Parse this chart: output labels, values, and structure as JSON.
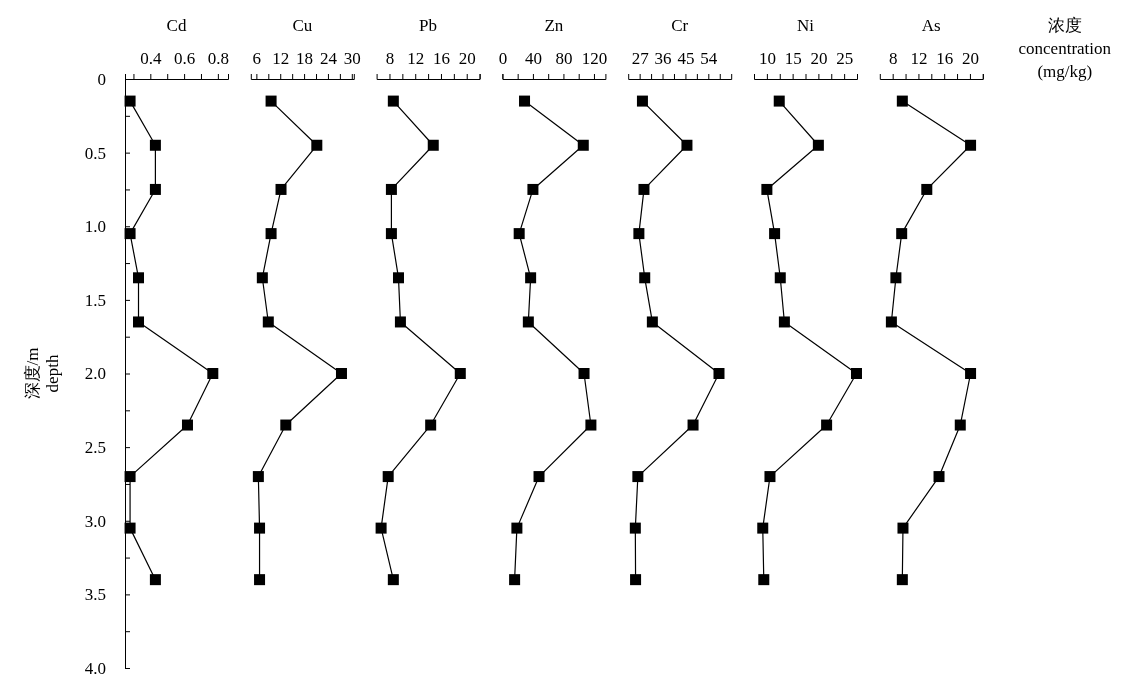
{
  "chart_data": [
    {
      "type": "line",
      "title": "Cd",
      "ylabel": "深度/m\ndepth",
      "color": "#000000",
      "marker": "square",
      "x": [
        0.28,
        0.43,
        0.43,
        0.28,
        0.33,
        0.33,
        0.77,
        0.62,
        0.28,
        0.28,
        0.43
      ],
      "values": [
        0.15,
        0.45,
        0.75,
        1.05,
        1.35,
        1.65,
        2.0,
        2.35,
        2.7,
        3.05,
        3.4
      ],
      "xlim": [
        0.25,
        0.86
      ],
      "xticks": [
        {
          "value": 0.3,
          "label": null
        },
        0.4,
        {
          "value": 0.5,
          "label": null
        },
        0.6,
        {
          "value": 0.7,
          "label": null
        },
        0.8
      ],
      "ylim": [
        4,
        0
      ],
      "yticks": [
        0,
        {
          "value": 0.25,
          "label": null
        },
        0.5,
        {
          "value": 0.75,
          "label": null
        },
        {
          "value": 1,
          "label": "1.0"
        },
        {
          "value": 1.25,
          "label": null
        },
        1.5,
        {
          "value": 1.75,
          "label": null
        },
        {
          "value": 2,
          "label": "2.0"
        },
        {
          "value": 2.25,
          "label": null
        },
        2.5,
        {
          "value": 2.75,
          "label": null
        },
        {
          "value": 3,
          "label": "3.0"
        },
        {
          "value": 3.25,
          "label": null
        },
        3.5,
        {
          "value": 3.75,
          "label": null
        },
        {
          "value": 4,
          "label": "4.0"
        }
      ]
    },
    {
      "type": "line",
      "title": "Cu",
      "color": "#000000",
      "marker": "square",
      "x": [
        9.7,
        21.2,
        12.2,
        9.7,
        7.5,
        9.0,
        27.4,
        13.4,
        6.5,
        6.8,
        6.8
      ],
      "values": [
        0.15,
        0.45,
        0.75,
        1.05,
        1.35,
        1.65,
        2.0,
        2.35,
        2.7,
        3.05,
        3.4
      ],
      "xlim": [
        4.6,
        30.5
      ],
      "xticks": [
        6,
        {
          "value": 9,
          "label": null
        },
        12,
        {
          "value": 15,
          "label": null
        },
        18,
        {
          "value": 21,
          "label": null
        },
        24,
        {
          "value": 27,
          "label": null
        },
        30
      ],
      "ylim": [
        4,
        0
      ],
      "tick_labels": "x"
    },
    {
      "type": "line",
      "title": "Pb",
      "color": "#000000",
      "marker": "square",
      "x": [
        8.6,
        14.8,
        8.3,
        8.3,
        9.4,
        9.7,
        19.0,
        14.4,
        7.8,
        6.7,
        8.6
      ],
      "values": [
        0.15,
        0.45,
        0.75,
        1.05,
        1.35,
        1.65,
        2.0,
        2.35,
        2.7,
        3.05,
        3.4
      ],
      "xlim": [
        6,
        22
      ],
      "xticks": [
        8,
        {
          "value": 10,
          "label": null
        },
        12,
        {
          "value": 14,
          "label": null
        },
        16,
        {
          "value": 18,
          "label": null
        },
        20,
        {
          "value": 22,
          "label": null
        }
      ],
      "ylim": [
        4,
        0
      ],
      "tick_labels": "x"
    },
    {
      "type": "line",
      "title": "Zn",
      "color": "#000000",
      "marker": "square",
      "x": [
        29,
        106,
        40,
        22,
        37,
        34,
        107,
        116,
        48,
        19,
        16
      ],
      "values": [
        0.15,
        0.45,
        0.75,
        1.05,
        1.35,
        1.65,
        2.0,
        2.35,
        2.7,
        3.05,
        3.4
      ],
      "xlim": [
        0,
        135
      ],
      "xticks": [
        0,
        {
          "value": 20,
          "label": null
        },
        40,
        {
          "value": 60,
          "label": null
        },
        80,
        {
          "value": 100,
          "label": null
        },
        120
      ],
      "ylim": [
        4,
        0
      ],
      "tick_labels": "x"
    },
    {
      "type": "line",
      "title": "Cr",
      "color": "#000000",
      "marker": "square",
      "x": [
        28.1,
        45.6,
        28.7,
        26.7,
        29.0,
        32.0,
        58.2,
        48.0,
        26.3,
        25.3,
        25.4
      ],
      "values": [
        0.15,
        0.45,
        0.75,
        1.05,
        1.35,
        1.65,
        2.0,
        2.35,
        2.7,
        3.05,
        3.4
      ],
      "xlim": [
        22.5,
        63
      ],
      "xticks": [
        27,
        {
          "value": 31.5,
          "label": null
        },
        36,
        {
          "value": 40.5,
          "label": null
        },
        45,
        {
          "value": 49.5,
          "label": null
        },
        54,
        {
          "value": 58.5,
          "label": null
        }
      ],
      "ylim": [
        4,
        0
      ],
      "tick_labels": "x"
    },
    {
      "type": "line",
      "title": "Ni",
      "color": "#000000",
      "marker": "square",
      "x": [
        12.4,
        20.0,
        10.0,
        11.5,
        12.6,
        13.4,
        27.4,
        21.6,
        10.6,
        9.2,
        9.4
      ],
      "values": [
        0.15,
        0.45,
        0.75,
        1.05,
        1.35,
        1.65,
        2.0,
        2.35,
        2.7,
        3.05,
        3.4
      ],
      "xlim": [
        7.5,
        27.5
      ],
      "xticks": [
        10,
        {
          "value": 12.5,
          "label": null
        },
        15,
        {
          "value": 17.5,
          "label": null
        },
        20,
        {
          "value": 22.5,
          "label": null
        },
        25,
        {
          "value": 27.5,
          "label": null
        }
      ],
      "ylim": [
        4,
        0
      ],
      "tick_labels": "x"
    },
    {
      "type": "line",
      "title": "As",
      "xlabel": "浓度\nconcentration\n(mg/kg)",
      "color": "#000000",
      "marker": "square",
      "x": [
        9.5,
        20.1,
        13.3,
        9.4,
        8.5,
        7.8,
        20.1,
        18.5,
        15.2,
        9.6,
        9.5
      ],
      "values": [
        0.15,
        0.45,
        0.75,
        1.05,
        1.35,
        1.65,
        2.0,
        2.35,
        2.7,
        3.05,
        3.4
      ],
      "xlim": [
        6,
        22
      ],
      "xticks": [
        8,
        {
          "value": 10,
          "label": null
        },
        12,
        {
          "value": 14,
          "label": null
        },
        16,
        {
          "value": 18,
          "label": null
        },
        20,
        {
          "value": 22,
          "label": null
        }
      ],
      "ylim": [
        4,
        0
      ],
      "tick_labels": "x"
    }
  ]
}
